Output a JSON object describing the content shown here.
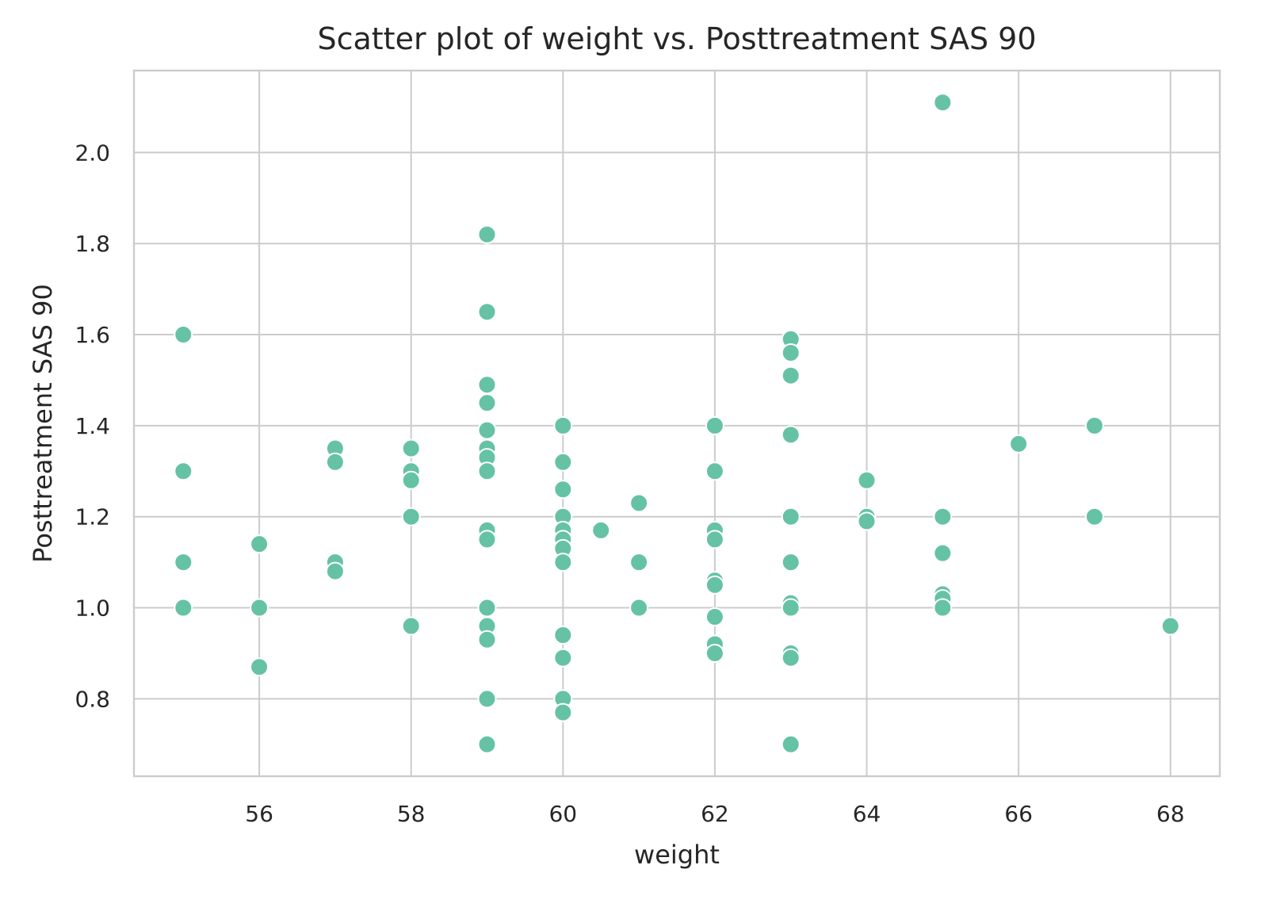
{
  "colors": {
    "point": "#66c2a5",
    "point_edge": "#ffffff",
    "grid": "#cccccc",
    "text": "#262626"
  },
  "chart_data": {
    "type": "scatter",
    "title": "Scatter plot of weight vs. Posttreatment SAS 90",
    "xlabel": "weight",
    "ylabel": "Posttreatment SAS 90",
    "xlim": [
      54.35,
      68.65
    ],
    "ylim": [
      0.63,
      2.18
    ],
    "xticks": [
      56,
      58,
      60,
      62,
      64,
      66,
      68
    ],
    "xtick_labels": [
      "56",
      "58",
      "60",
      "62",
      "64",
      "66",
      "68"
    ],
    "yticks": [
      0.8,
      1.0,
      1.2,
      1.4,
      1.6,
      1.8,
      2.0
    ],
    "ytick_labels": [
      "0.8",
      "1.0",
      "1.2",
      "1.4",
      "1.6",
      "1.8",
      "2.0"
    ],
    "grid": true,
    "legend": "none",
    "points": [
      [
        55,
        1.6
      ],
      [
        55,
        1.3
      ],
      [
        55,
        1.1
      ],
      [
        55,
        1.0
      ],
      [
        56,
        1.14
      ],
      [
        56,
        1.0
      ],
      [
        56,
        0.87
      ],
      [
        57,
        1.35
      ],
      [
        57,
        1.32
      ],
      [
        57,
        1.1
      ],
      [
        57,
        1.08
      ],
      [
        58,
        1.35
      ],
      [
        58,
        1.3
      ],
      [
        58,
        1.28
      ],
      [
        58,
        1.2
      ],
      [
        58,
        0.96
      ],
      [
        59,
        1.82
      ],
      [
        59,
        1.65
      ],
      [
        59,
        1.49
      ],
      [
        59,
        1.45
      ],
      [
        59,
        1.39
      ],
      [
        59,
        1.35
      ],
      [
        59,
        1.33
      ],
      [
        59,
        1.3
      ],
      [
        59,
        1.17
      ],
      [
        59,
        1.15
      ],
      [
        59,
        1.0
      ],
      [
        59,
        0.96
      ],
      [
        59,
        0.93
      ],
      [
        59,
        0.8
      ],
      [
        59,
        0.7
      ],
      [
        60,
        1.4
      ],
      [
        60,
        1.32
      ],
      [
        60,
        1.26
      ],
      [
        60,
        1.2
      ],
      [
        60,
        1.17
      ],
      [
        60,
        1.15
      ],
      [
        60,
        1.13
      ],
      [
        60,
        1.1
      ],
      [
        60,
        0.94
      ],
      [
        60,
        0.89
      ],
      [
        60,
        0.8
      ],
      [
        60,
        0.77
      ],
      [
        60.5,
        1.17
      ],
      [
        61,
        1.23
      ],
      [
        61,
        1.1
      ],
      [
        61,
        1.0
      ],
      [
        62,
        1.4
      ],
      [
        62,
        1.3
      ],
      [
        62,
        1.17
      ],
      [
        62,
        1.15
      ],
      [
        62,
        1.06
      ],
      [
        62,
        1.05
      ],
      [
        62,
        0.98
      ],
      [
        62,
        0.92
      ],
      [
        62,
        0.9
      ],
      [
        63,
        1.59
      ],
      [
        63,
        1.56
      ],
      [
        63,
        1.51
      ],
      [
        63,
        1.38
      ],
      [
        63,
        1.2
      ],
      [
        63,
        1.1
      ],
      [
        63,
        1.01
      ],
      [
        63,
        1.0
      ],
      [
        63,
        0.9
      ],
      [
        63,
        0.89
      ],
      [
        63,
        0.7
      ],
      [
        64,
        1.28
      ],
      [
        64,
        1.2
      ],
      [
        64,
        1.19
      ],
      [
        65,
        2.11
      ],
      [
        65,
        1.2
      ],
      [
        65,
        1.12
      ],
      [
        65,
        1.03
      ],
      [
        65,
        1.02
      ],
      [
        65,
        1.0
      ],
      [
        66,
        1.36
      ],
      [
        67,
        1.4
      ],
      [
        67,
        1.2
      ],
      [
        68,
        0.96
      ]
    ]
  }
}
